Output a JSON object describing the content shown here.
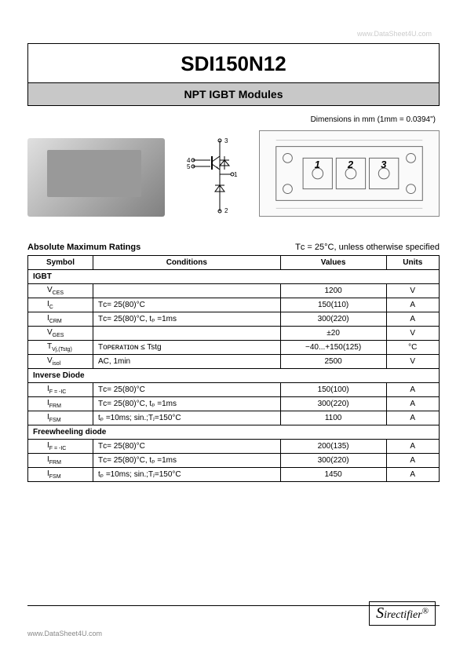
{
  "watermark_top": "www.DataSheet4U.com",
  "title": "SDI150N12",
  "subtitle": "NPT IGBT Modules",
  "dimensions_label": "Dimensions in mm (1mm = 0.0394\")",
  "schematic_pins": [
    "1",
    "2",
    "3",
    "4",
    "5"
  ],
  "drawing_labels": [
    "1",
    "2",
    "3"
  ],
  "ratings_title": "Absolute Maximum Ratings",
  "ratings_condition_note": "Tᴄ = 25°C, unless otherwise specified",
  "table": {
    "headers": [
      "Symbol",
      "Conditions",
      "Values",
      "Units"
    ],
    "sections": [
      {
        "name": "IGBT",
        "rows": [
          {
            "symbol": "V",
            "sub": "CES",
            "conditions": "",
            "values": "1200",
            "units": "V"
          },
          {
            "symbol": "I",
            "sub": "C",
            "conditions": "Tᴄ= 25(80)°C",
            "values": "150(110)",
            "units": "A"
          },
          {
            "symbol": "I",
            "sub": "CRM",
            "conditions": "Tᴄ= 25(80)°C,  tₚ =1ms",
            "values": "300(220)",
            "units": "A"
          },
          {
            "symbol": "V",
            "sub": "GES",
            "conditions": "",
            "values": "±20",
            "units": "V"
          },
          {
            "symbol": "T",
            "sub": "Vj,(Tstg)",
            "conditions": "Tᴏᴘᴇʀᴀᴛɪᴏɴ ≤  Tstg",
            "values": "−40...+150(125)",
            "units": "°C"
          },
          {
            "symbol": "V",
            "sub": "isol",
            "conditions": "AC, 1min",
            "values": "2500",
            "units": "V"
          }
        ]
      },
      {
        "name": "Inverse Diode",
        "rows": [
          {
            "symbol": "I",
            "sub": "F = -IC",
            "conditions": "Tᴄ= 25(80)°C",
            "values": "150(100)",
            "units": "A"
          },
          {
            "symbol": "I",
            "sub": "FRM",
            "conditions": "Tᴄ= 25(80)°C,  tₚ =1ms",
            "values": "300(220)",
            "units": "A"
          },
          {
            "symbol": "I",
            "sub": "FSM",
            "conditions": "tₚ =10ms; sin.;Tⱼ=150°C",
            "values": "1100",
            "units": "A"
          }
        ]
      },
      {
        "name": "Freewheeling  diode",
        "rows": [
          {
            "symbol": "I",
            "sub": "F = -IC",
            "conditions": "Tᴄ= 25(80)°C",
            "values": "200(135)",
            "units": "A"
          },
          {
            "symbol": "I",
            "sub": "FRM",
            "conditions": "Tᴄ= 25(80)°C,  tₚ =1ms",
            "values": "300(220)",
            "units": "A"
          },
          {
            "symbol": "I",
            "sub": "FSM",
            "conditions": "tₚ =10ms; sin.;Tⱼ=150°C",
            "values": "1450",
            "units": "A"
          }
        ]
      }
    ]
  },
  "logo_text": "Sirectifier",
  "logo_big": "S",
  "logo_rest": "irectifier",
  "footer_url": "www.DataSheet4U.com",
  "colors": {
    "subtitle_bg": "#c8c8c8",
    "border": "#000000",
    "watermark": "#cccccc",
    "footer_text": "#888888"
  }
}
